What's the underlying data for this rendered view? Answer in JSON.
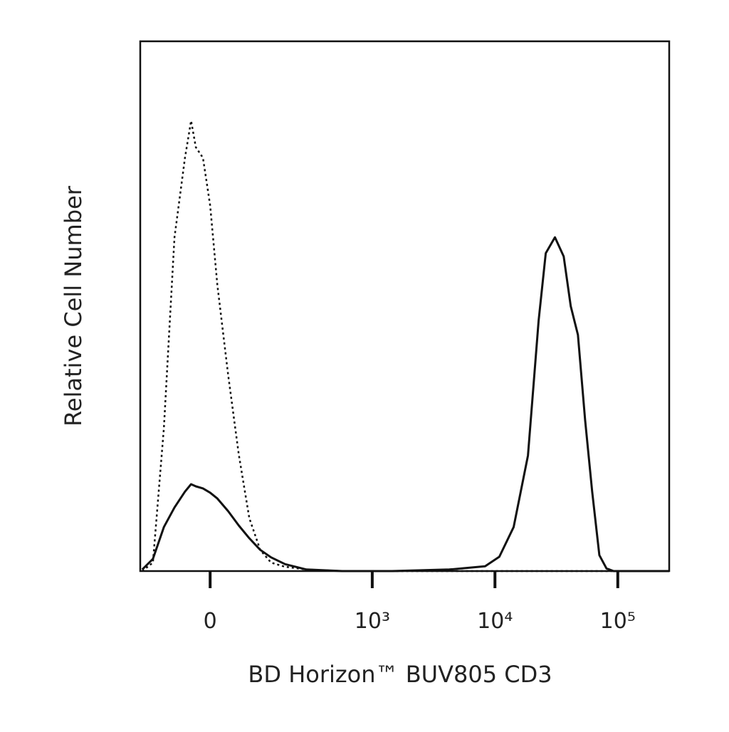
{
  "chart_data": {
    "type": "line",
    "xlabel": "BD Horizon™ BUV805 CD3",
    "ylabel": "Relative Cell Number",
    "xscale": "biexponential",
    "xlim": [
      -165,
      262144
    ],
    "xticks": [
      0,
      {
        "value": 1000,
        "label": "10³"
      },
      {
        "value": 10000,
        "label": "10⁴"
      },
      {
        "value": 100000,
        "label": "10⁵"
      }
    ],
    "ylim": [
      0,
      100
    ],
    "x": [
      -158,
      -124,
      -94,
      -69,
      -47,
      -35,
      -26,
      -13,
      0,
      13,
      33,
      54,
      77,
      104,
      135,
      184,
      284,
      567,
      1457,
      4250,
      8310,
      10860,
      14200,
      18570,
      22680,
      25900,
      30800,
      36280,
      41400,
      47400,
      54200,
      61900,
      70800,
      80900,
      92500,
      158000,
      262144
    ],
    "series": [
      {
        "color": "#111111",
        "linestyle": "dotted",
        "values": [
          0,
          1.6,
          27,
          63,
          78,
          85,
          80,
          78,
          69,
          54,
          37,
          22,
          10,
          4,
          1.6,
          0.8,
          0.3,
          0,
          0,
          0,
          0,
          0,
          0,
          0,
          0,
          0,
          0,
          0,
          0,
          0,
          0,
          0,
          0,
          0,
          0,
          0,
          0
        ]
      },
      {
        "color": "#111111",
        "linestyle": "solid",
        "values": [
          0.3,
          2.3,
          8.3,
          12,
          15,
          16.4,
          16,
          15.6,
          14.8,
          13.7,
          11.3,
          8.6,
          6.2,
          4,
          2.6,
          1.3,
          0.3,
          0,
          0,
          0.3,
          0.9,
          2.7,
          8.3,
          21.8,
          47.3,
          60,
          63,
          59.4,
          50,
          44.6,
          28.5,
          15,
          3,
          0.5,
          0,
          0,
          0
        ]
      }
    ]
  }
}
